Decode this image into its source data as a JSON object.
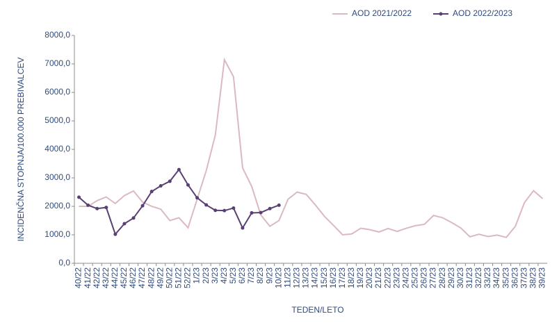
{
  "chart_data": {
    "type": "line",
    "xlabel": "TEDEN/LETO",
    "ylabel": "INCIDENČNA  STOPNJA/100.000  PREBIVALCEV",
    "categories": [
      "40/22",
      "41/22",
      "42/22",
      "43/22",
      "44/22",
      "45/22",
      "46/22",
      "47/22",
      "48/22",
      "49/22",
      "50/22",
      "51/22",
      "52/22",
      "1/23",
      "2/23",
      "3/23",
      "4/23",
      "5/23",
      "6/23",
      "7/23",
      "8/23",
      "9/23",
      "10/23",
      "11/23",
      "12/23",
      "13/23",
      "14/23",
      "15/23",
      "16/23",
      "17/23",
      "18/23",
      "19/23",
      "20/23",
      "21/23",
      "22/23",
      "23/23",
      "24/23",
      "25/23",
      "26/23",
      "27/23",
      "28/23",
      "29/23",
      "30/23",
      "31/23",
      "32/23",
      "33/23",
      "34/23",
      "35/23",
      "36/23",
      "37/23",
      "38/23",
      "39/23"
    ],
    "series": [
      {
        "name": "AOD 2021/2022",
        "color": "#dbb9c0",
        "markers": false,
        "values": [
          2000,
          2000,
          2200,
          2330,
          2100,
          2380,
          2540,
          2150,
          2000,
          1900,
          1500,
          1600,
          1250,
          2250,
          3250,
          4500,
          7150,
          6550,
          3350,
          2700,
          1700,
          1300,
          1500,
          2250,
          2500,
          2420,
          2050,
          1650,
          1330,
          1000,
          1030,
          1230,
          1180,
          1100,
          1220,
          1120,
          1230,
          1320,
          1370,
          1680,
          1600,
          1430,
          1240,
          930,
          1020,
          940,
          990,
          910,
          1300,
          2130,
          2550,
          2270
        ]
      },
      {
        "name": "AOD 2022/2023",
        "color": "#5a3f73",
        "markers": true,
        "values": [
          2320,
          2040,
          1920,
          1960,
          1020,
          1390,
          1590,
          2020,
          2520,
          2720,
          2880,
          3290,
          2750,
          2300,
          2050,
          1860,
          1850,
          1940,
          1240,
          1770,
          1780,
          1920,
          2040,
          null,
          null,
          null,
          null,
          null,
          null,
          null,
          null,
          null,
          null,
          null,
          null,
          null,
          null,
          null,
          null,
          null,
          null,
          null,
          null,
          null,
          null,
          null,
          null,
          null,
          null,
          null,
          null,
          null
        ]
      }
    ],
    "ylim": [
      0,
      8000
    ],
    "yticks": [
      {
        "value": 0,
        "label": "0,0"
      },
      {
        "value": 1000,
        "label": "1000,0"
      },
      {
        "value": 2000,
        "label": "2000,0"
      },
      {
        "value": 3000,
        "label": "3000,0"
      },
      {
        "value": 4000,
        "label": "4000,0"
      },
      {
        "value": 5000,
        "label": "5000,0"
      },
      {
        "value": 6000,
        "label": "6000,0"
      },
      {
        "value": 7000,
        "label": "7000,0"
      },
      {
        "value": 8000,
        "label": "8000,0"
      }
    ],
    "grid": false,
    "legend": "top"
  }
}
